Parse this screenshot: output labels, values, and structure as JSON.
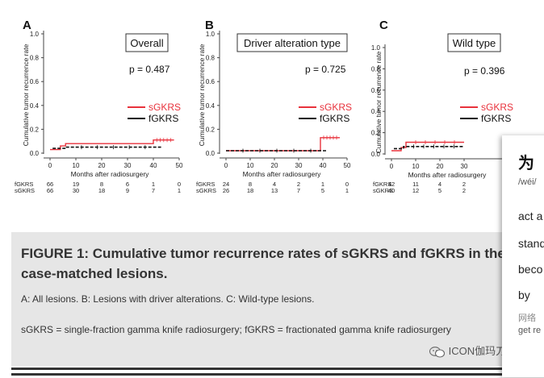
{
  "panels": [
    {
      "letter": "A",
      "box_label": "Overall",
      "p_value": "p =  0.487",
      "ylabel": "Cumulative tumor recurrence rate",
      "xlabel": "Months after radiosurgery",
      "y_ticks": [
        "0.0",
        "0.2",
        "0.4",
        "0.6",
        "0.8",
        "1.0"
      ],
      "x_ticks": [
        "0",
        "10",
        "20",
        "30",
        "40",
        "50"
      ],
      "legend": [
        {
          "label": "sGKRS",
          "color": "#e8323c"
        },
        {
          "label": "fGKRS",
          "color": "#111111"
        }
      ],
      "risk_table": [
        {
          "label": "fGKRS",
          "values": [
            "66",
            "19",
            "8",
            "6",
            "1",
            "0"
          ]
        },
        {
          "label": "sGKRS",
          "values": [
            "66",
            "30",
            "18",
            "9",
            "7",
            "1"
          ]
        }
      ]
    },
    {
      "letter": "B",
      "box_label": "Driver alteration type",
      "p_value": "p = 0.725",
      "ylabel": "Cumulative tumor recurrence rate",
      "xlabel": "Months after radiosurgery",
      "y_ticks": [
        "0.0",
        "0.2",
        "0.4",
        "0.6",
        "0.8",
        "1.0"
      ],
      "x_ticks": [
        "0",
        "10",
        "20",
        "30",
        "40",
        "50"
      ],
      "legend": [
        {
          "label": "sGKRS",
          "color": "#e8323c"
        },
        {
          "label": "fGKRS",
          "color": "#111111"
        }
      ],
      "risk_table": [
        {
          "label": "fGKRS",
          "values": [
            "24",
            "8",
            "4",
            "2",
            "1",
            "0"
          ]
        },
        {
          "label": "sGKRS",
          "values": [
            "26",
            "18",
            "13",
            "7",
            "5",
            "1"
          ]
        }
      ]
    },
    {
      "letter": "C",
      "box_label": "Wild type",
      "p_value": "p = 0.396",
      "ylabel": "Cumulative tumor recurrence rate",
      "xlabel": "Months after radiosurgery",
      "y_ticks": [
        "0.0",
        "0.2",
        "0.4",
        "0.6",
        "0.8",
        "1.0"
      ],
      "x_ticks": [
        "0",
        "10",
        "20",
        "30"
      ],
      "legend": [
        {
          "label": "sGKRS",
          "color": "#e8323c"
        },
        {
          "label": "fGKRS",
          "color": "#111111"
        }
      ],
      "risk_table": [
        {
          "label": "fGKRS",
          "values": [
            "42",
            "11",
            "4",
            "2"
          ]
        },
        {
          "label": "sGKRS",
          "values": [
            "40",
            "12",
            "5",
            "2"
          ]
        }
      ]
    }
  ],
  "chart_data": [
    {
      "type": "line",
      "title": "Overall",
      "xlabel": "Months after radiosurgery",
      "ylabel": "Cumulative tumor recurrence rate",
      "xlim": [
        0,
        50
      ],
      "ylim": [
        0,
        1.0
      ],
      "grid": false,
      "legend": "right",
      "series": [
        {
          "name": "sGKRS",
          "points": [
            [
              0,
              0.03
            ],
            [
              4,
              0.03
            ],
            [
              4,
              0.06
            ],
            [
              6,
              0.06
            ],
            [
              6,
              0.08
            ],
            [
              40,
              0.08
            ],
            [
              40,
              0.11
            ],
            [
              48,
              0.11
            ]
          ]
        },
        {
          "name": "fGKRS",
          "points": [
            [
              1,
              0.04
            ],
            [
              6,
              0.04
            ],
            [
              6,
              0.05
            ],
            [
              43,
              0.05
            ]
          ]
        }
      ]
    },
    {
      "type": "line",
      "title": "Driver alteration type",
      "xlabel": "Months after radiosurgery",
      "ylabel": "Cumulative tumor recurrence rate",
      "xlim": [
        0,
        50
      ],
      "ylim": [
        0,
        1.0
      ],
      "grid": false,
      "legend": "right",
      "series": [
        {
          "name": "sGKRS",
          "points": [
            [
              0,
              0.02
            ],
            [
              39,
              0.02
            ],
            [
              39,
              0.13
            ],
            [
              47,
              0.13
            ]
          ]
        },
        {
          "name": "fGKRS",
          "points": [
            [
              0,
              0.02
            ],
            [
              42,
              0.02
            ]
          ]
        }
      ]
    },
    {
      "type": "line",
      "title": "Wild type",
      "xlabel": "Months after radiosurgery",
      "ylabel": "Cumulative tumor recurrence rate",
      "xlim": [
        0,
        50
      ],
      "ylim": [
        0,
        1.0
      ],
      "grid": false,
      "legend": "right",
      "series": [
        {
          "name": "sGKRS",
          "points": [
            [
              0,
              0.03
            ],
            [
              4,
              0.03
            ],
            [
              4,
              0.06
            ],
            [
              6,
              0.06
            ],
            [
              6,
              0.11
            ],
            [
              30,
              0.11
            ]
          ]
        },
        {
          "name": "fGKRS",
          "points": [
            [
              1,
              0.05
            ],
            [
              5,
              0.05
            ],
            [
              5,
              0.07
            ],
            [
              30,
              0.07
            ]
          ]
        }
      ]
    }
  ],
  "caption": {
    "title": "FIGURE 1: Cumulative tumor recurrence rates of sGKRS and fGKRS in the case-matched lesions.",
    "line1": "A: All lesions. B: Lesions with driver alterations. C: Wild-type lesions.",
    "line2": "sGKRS = single-fraction gamma knife radiosurgery; fGKRS = fractionated gamma knife radiosurgery"
  },
  "dict_popup": {
    "headword": "为",
    "pinyin": "/wéi/",
    "words": [
      "act a",
      "stand",
      "beco",
      "by"
    ],
    "source": "网络",
    "source_text": "get re"
  },
  "watermark": {
    "text": "ICON伽玛刀",
    "icon": "wechat-icon"
  }
}
